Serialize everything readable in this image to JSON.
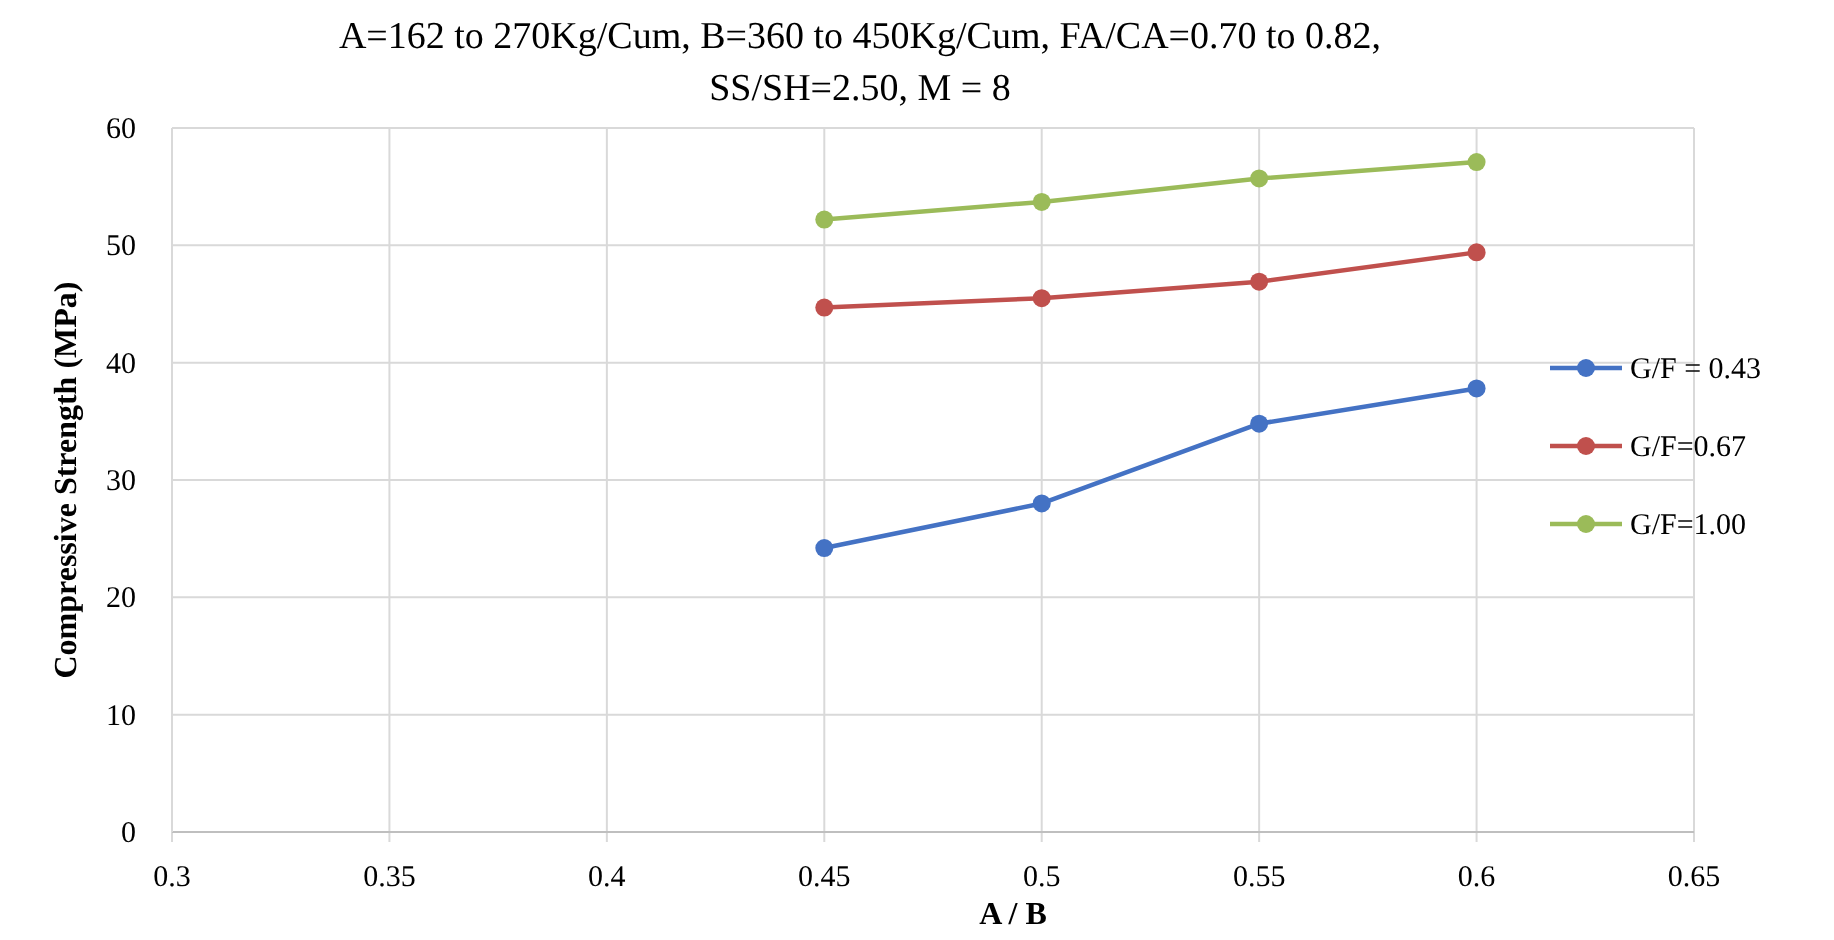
{
  "chart_data": {
    "type": "line",
    "title": "A=162 to 270Kg/Cum, B=360 to 450Kg/Cum, FA/CA=0.70 to 0.82,",
    "subtitle": "SS/SH=2.50, M = 8",
    "xlabel": "A / B",
    "ylabel": "Compressive Strength (MPa)",
    "x": [
      0.45,
      0.5,
      0.55,
      0.6
    ],
    "series": [
      {
        "name": "G/F = 0.43",
        "color": "#4472c4",
        "values": [
          24.2,
          28.0,
          34.8,
          37.8
        ]
      },
      {
        "name": "G/F=0.67",
        "color": "#c0504d",
        "values": [
          44.7,
          45.5,
          46.9,
          49.4
        ]
      },
      {
        "name": "G/F=1.00",
        "color": "#9bbb59",
        "values": [
          52.2,
          53.7,
          55.7,
          57.1
        ]
      }
    ],
    "xlim": [
      0.3,
      0.65
    ],
    "xticks": [
      0.3,
      0.35,
      0.4,
      0.45,
      0.5,
      0.55,
      0.6,
      0.65
    ],
    "ylim": [
      0,
      60
    ],
    "yticks": [
      0,
      10,
      20,
      30,
      40,
      50,
      60
    ],
    "grid": true,
    "legend": "right",
    "marker": "circle",
    "line_style": "solid"
  }
}
